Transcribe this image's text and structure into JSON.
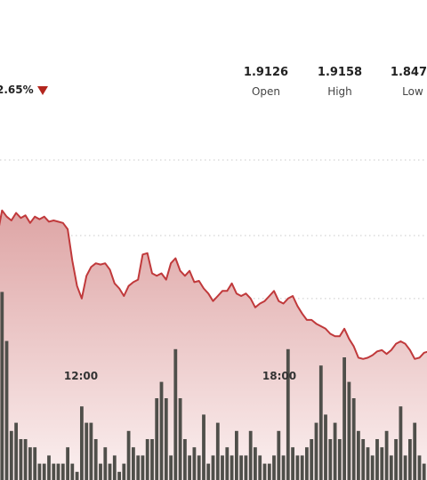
{
  "quote": {
    "change_percent": "2.65%",
    "direction": "down",
    "open_label": "Open",
    "open_value": "1.9126",
    "high_label": "High",
    "high_value": "1.9158",
    "low_label": "Low",
    "low_value": "1.8470"
  },
  "colors": {
    "line": "#c0393b",
    "area_top": "#dea5a5",
    "area_bottom": "#fbf0f0",
    "volume": "#4f4f4a",
    "grid": "#c9c9c9",
    "down": "#b3261e"
  },
  "chart_data": {
    "type": "area",
    "x_ticks": [
      "12:00",
      "18:00"
    ],
    "grid": true,
    "price": [
      1.9,
      1.92,
      1.915,
      1.912,
      1.918,
      1.914,
      1.916,
      1.91,
      1.915,
      1.913,
      1.915,
      1.911,
      1.912,
      1.911,
      1.91,
      1.905,
      1.88,
      1.86,
      1.85,
      1.868,
      1.875,
      1.878,
      1.877,
      1.878,
      1.873,
      1.862,
      1.858,
      1.852,
      1.86,
      1.863,
      1.865,
      1.885,
      1.886,
      1.87,
      1.868,
      1.87,
      1.865,
      1.878,
      1.882,
      1.872,
      1.868,
      1.872,
      1.863,
      1.864,
      1.858,
      1.854,
      1.848,
      1.852,
      1.856,
      1.856,
      1.862,
      1.854,
      1.852,
      1.854,
      1.85,
      1.843,
      1.846,
      1.848,
      1.852,
      1.856,
      1.848,
      1.846,
      1.85,
      1.852,
      1.844,
      1.838,
      1.833,
      1.833,
      1.83,
      1.828,
      1.826,
      1.822,
      1.82,
      1.82,
      1.826,
      1.818,
      1.812,
      1.803,
      1.802,
      1.803,
      1.805,
      1.808,
      1.809,
      1.806,
      1.809,
      1.814,
      1.816,
      1.814,
      1.809,
      1.802,
      1.803,
      1.807,
      1.808
    ],
    "volume": [
      12,
      23,
      17,
      6,
      7,
      5,
      5,
      4,
      4,
      2,
      2,
      3,
      2,
      2,
      2,
      4,
      2,
      1,
      9,
      7,
      7,
      5,
      2,
      4,
      2,
      3,
      1,
      2,
      6,
      4,
      3,
      3,
      5,
      5,
      10,
      12,
      10,
      3,
      16,
      10,
      5,
      3,
      4,
      3,
      8,
      2,
      3,
      7,
      3,
      4,
      3,
      6,
      3,
      3,
      6,
      4,
      3,
      2,
      2,
      3,
      6,
      3,
      16,
      4,
      3,
      3,
      4,
      5,
      7,
      14,
      8,
      5,
      7,
      5,
      15,
      12,
      10,
      6,
      5,
      4,
      3,
      5,
      4,
      6,
      3,
      5,
      9,
      3,
      5,
      7,
      3,
      2,
      3
    ]
  }
}
